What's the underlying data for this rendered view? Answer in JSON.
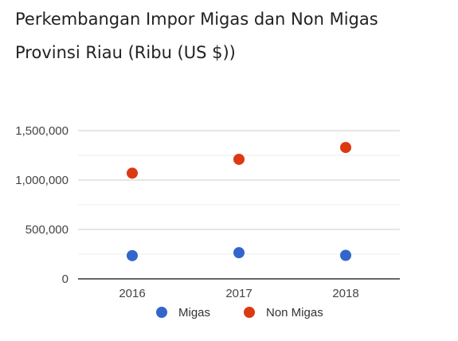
{
  "chart_data": {
    "type": "scatter",
    "title": "Perkembangan Impor Migas dan Non Migas Provinsi Riau (Ribu (US $))",
    "categories": [
      "2016",
      "2017",
      "2018"
    ],
    "series": [
      {
        "name": "Migas",
        "color": "#3366cc",
        "values": [
          235000,
          265000,
          238000
        ]
      },
      {
        "name": "Non Migas",
        "color": "#dc3912",
        "values": [
          1070000,
          1210000,
          1330000
        ]
      }
    ],
    "ylim": [
      0,
      1500000
    ],
    "y_ticks": [
      0,
      500000,
      1000000,
      1500000
    ],
    "y_tick_labels": [
      "0",
      "500,000",
      "1,000,000",
      "1,500,000"
    ],
    "grid": true,
    "legend_position": "bottom",
    "xlabel": "",
    "ylabel": ""
  }
}
